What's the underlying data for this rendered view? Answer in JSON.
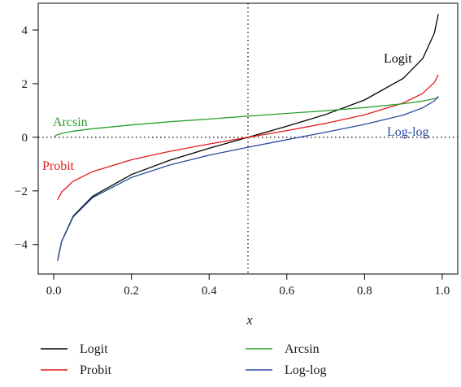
{
  "chart_data": {
    "type": "line",
    "title": "",
    "xlabel": "x",
    "ylabel": "",
    "xlim": [
      -0.04,
      1.04
    ],
    "ylim": [
      -5.1,
      5.0
    ],
    "xticks": [
      0.0,
      0.2,
      0.4,
      0.6,
      0.8,
      1.0
    ],
    "xtick_labels": [
      "0.0",
      "0.2",
      "0.4",
      "0.6",
      "0.8",
      "1.0"
    ],
    "yticks": [
      -4,
      -2,
      0,
      2,
      4
    ],
    "ytick_labels": [
      "−4",
      "−2",
      "0",
      "2",
      "4"
    ],
    "reference_lines": [
      {
        "orientation": "vertical",
        "value": 0.5,
        "style": "dotted"
      },
      {
        "orientation": "horizontal",
        "value": 0,
        "style": "dotted"
      }
    ],
    "grid": false,
    "legend_position": "bottom",
    "series": [
      {
        "name": "Logit",
        "color": "#000000",
        "label_text": "Logit",
        "x": [
          0.01,
          0.02,
          0.05,
          0.1,
          0.2,
          0.3,
          0.4,
          0.5,
          0.6,
          0.7,
          0.8,
          0.9,
          0.95,
          0.98,
          0.99
        ],
        "y": [
          -4.6,
          -3.89,
          -2.94,
          -2.2,
          -1.39,
          -0.85,
          -0.41,
          0.0,
          0.41,
          0.85,
          1.39,
          2.2,
          2.94,
          3.89,
          4.6
        ]
      },
      {
        "name": "Probit",
        "color": "#e41a1c",
        "label_text": "Probit",
        "x": [
          0.01,
          0.02,
          0.05,
          0.1,
          0.2,
          0.3,
          0.4,
          0.5,
          0.6,
          0.7,
          0.8,
          0.9,
          0.95,
          0.98,
          0.99
        ],
        "y": [
          -2.33,
          -2.05,
          -1.64,
          -1.28,
          -0.84,
          -0.52,
          -0.25,
          0.0,
          0.25,
          0.52,
          0.84,
          1.28,
          1.64,
          2.05,
          2.33
        ]
      },
      {
        "name": "Arcsin",
        "color": "#2ca02c",
        "label_text": "Arcsin",
        "x": [
          0.001,
          0.01,
          0.02,
          0.05,
          0.1,
          0.2,
          0.3,
          0.4,
          0.5,
          0.6,
          0.7,
          0.8,
          0.9,
          0.95,
          0.99
        ],
        "y": [
          0.03,
          0.1,
          0.14,
          0.23,
          0.32,
          0.46,
          0.58,
          0.68,
          0.79,
          0.89,
          0.99,
          1.11,
          1.25,
          1.35,
          1.47
        ]
      },
      {
        "name": "Log-log",
        "color": "#2b4ba0",
        "label_text": "Log-log",
        "x": [
          0.01,
          0.02,
          0.05,
          0.1,
          0.2,
          0.3,
          0.4,
          0.5,
          0.6,
          0.7,
          0.8,
          0.9,
          0.95,
          0.98,
          0.99
        ],
        "y": [
          -4.6,
          -3.9,
          -2.97,
          -2.25,
          -1.5,
          -1.03,
          -0.67,
          -0.37,
          -0.09,
          0.19,
          0.48,
          0.83,
          1.1,
          1.36,
          1.53
        ]
      }
    ],
    "legend": [
      {
        "name": "Logit",
        "color": "#000000"
      },
      {
        "name": "Arcsin",
        "color": "#2ca02c"
      },
      {
        "name": "Probit",
        "color": "#e41a1c"
      },
      {
        "name": "Log-log",
        "color": "#2b4ba0"
      }
    ]
  }
}
